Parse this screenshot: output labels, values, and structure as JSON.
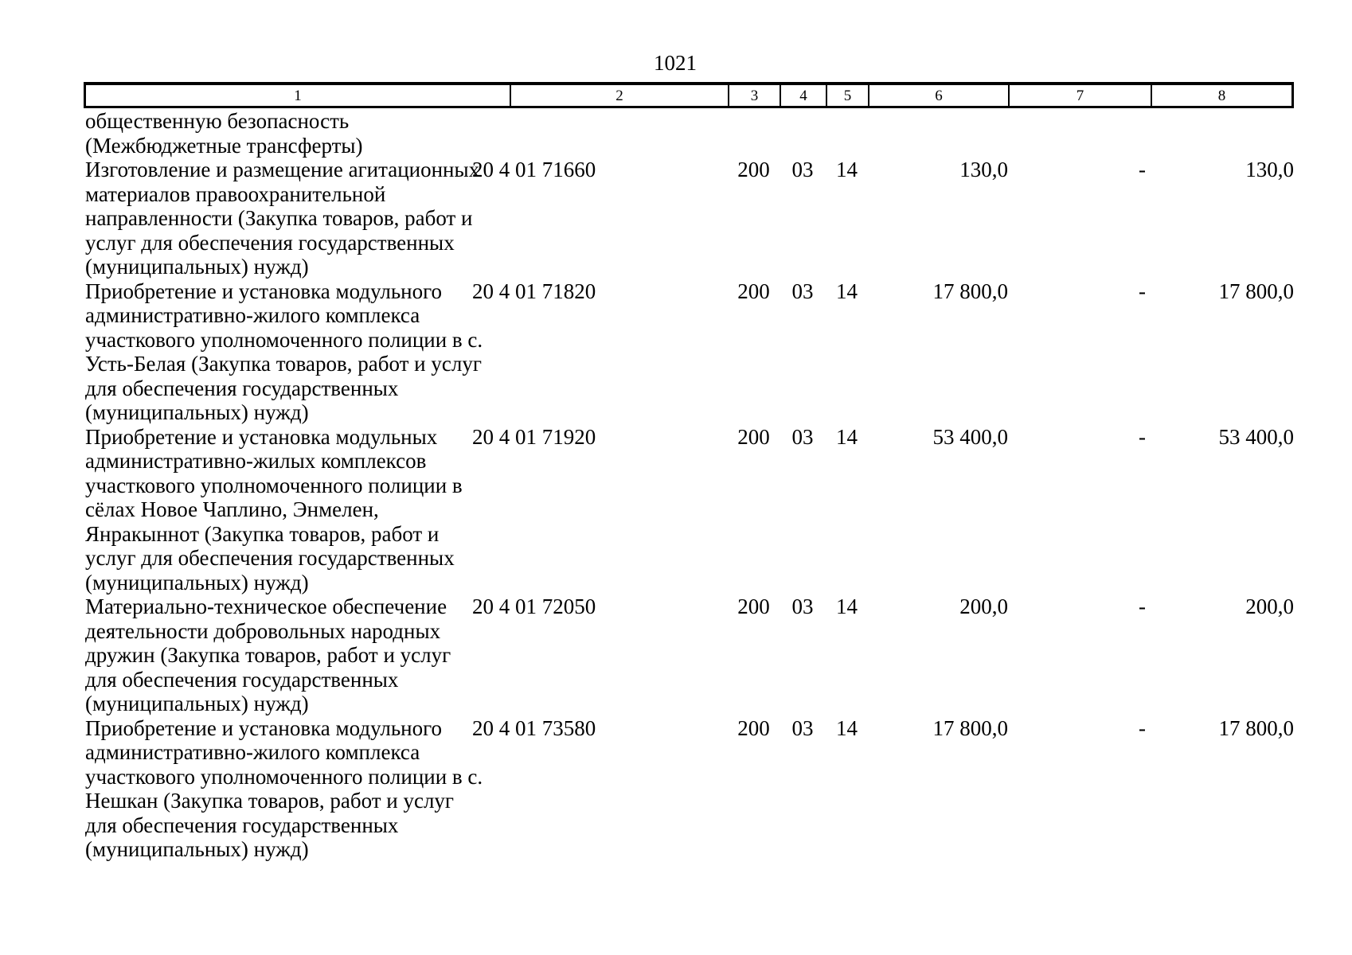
{
  "page": {
    "number": "1021"
  },
  "table": {
    "header_columns": [
      "1",
      "2",
      "3",
      "4",
      "5",
      "6",
      "7",
      "8"
    ],
    "rows": [
      {
        "description": "общественную безопасность\n(Межбюджетные трансферты)",
        "code": "",
        "col3": "",
        "col4": "",
        "col5": "",
        "col6": "",
        "col7": "",
        "col8": ""
      },
      {
        "description": "Изготовление и размещение агитационных\nматериалов правоохранительной\nнаправленности (Закупка товаров, работ и\nуслуг для обеспечения государственных\n(муниципальных) нужд)",
        "code": "20 4 01 71660",
        "col3": "200",
        "col4": "03",
        "col5": "14",
        "col6": "130,0",
        "col7": "-",
        "col8": "130,0"
      },
      {
        "description": "Приобретение и установка модульного\nадминистративно-жилого комплекса\nучасткового уполномоченного полиции в с.\nУсть-Белая (Закупка товаров, работ и услуг\nдля обеспечения государственных\n(муниципальных) нужд)",
        "code": "20 4 01 71820",
        "col3": "200",
        "col4": "03",
        "col5": "14",
        "col6": "17 800,0",
        "col7": "-",
        "col8": "17 800,0"
      },
      {
        "description": "Приобретение и установка модульных\nадминистративно-жилых комплексов\nучасткового уполномоченного полиции в\nсёлах Новое Чаплино, Энмелен,\nЯнракыннот (Закупка товаров, работ и\nуслуг для обеспечения государственных\n(муниципальных) нужд)",
        "code": "20 4 01 71920",
        "col3": "200",
        "col4": "03",
        "col5": "14",
        "col6": "53 400,0",
        "col7": "-",
        "col8": "53 400,0"
      },
      {
        "description": "Материально-техническое обеспечение\nдеятельности добровольных народных\nдружин (Закупка товаров, работ и услуг\nдля обеспечения государственных\n(муниципальных) нужд)",
        "code": "20 4 01 72050",
        "col3": "200",
        "col4": "03",
        "col5": "14",
        "col6": "200,0",
        "col7": "-",
        "col8": "200,0"
      },
      {
        "description": "Приобретение и установка модульного\nадминистративно-жилого комплекса\nучасткового уполномоченного полиции в с.\nНешкан (Закупка товаров, работ и услуг\nдля обеспечения государственных\n(муниципальных) нужд)",
        "code": "20 4 01 73580",
        "col3": "200",
        "col4": "03",
        "col5": "14",
        "col6": "17 800,0",
        "col7": "-",
        "col8": "17 800,0"
      }
    ]
  }
}
